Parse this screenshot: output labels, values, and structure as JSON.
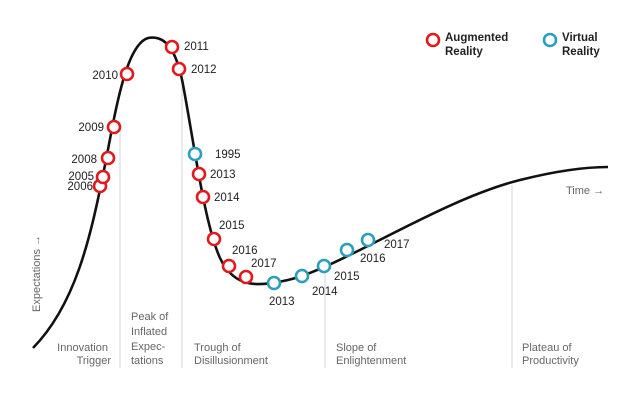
{
  "colors": {
    "curve": "#111111",
    "augmented": "#e0191d",
    "virtual": "#2a9fbd",
    "divider": "#d6d6d6",
    "phase_text": "#666666"
  },
  "legend": {
    "augmented_line1": "Augmented",
    "augmented_line2": "Reality",
    "virtual_line1": "Virtual",
    "virtual_line2": "Reality"
  },
  "axes": {
    "x_label": "Time →",
    "y_label": "Expectations →"
  },
  "phases": [
    {
      "lines": [
        "Innovation",
        "Trigger"
      ]
    },
    {
      "lines": [
        "Peak of",
        "Inflated",
        "Expec-",
        "tations"
      ]
    },
    {
      "lines": [
        "Trough of",
        "Disillusionment"
      ]
    },
    {
      "lines": [
        "Slope of",
        "Enlightenment"
      ]
    },
    {
      "lines": [
        "Plateau of",
        "Productivity"
      ]
    }
  ],
  "markers": [
    {
      "series": "augmented",
      "year": "2006"
    },
    {
      "series": "augmented",
      "year": "2005"
    },
    {
      "series": "augmented",
      "year": "2008"
    },
    {
      "series": "augmented",
      "year": "2009"
    },
    {
      "series": "augmented",
      "year": "2010"
    },
    {
      "series": "augmented",
      "year": "2011"
    },
    {
      "series": "augmented",
      "year": "2012"
    },
    {
      "series": "virtual",
      "year": "1995"
    },
    {
      "series": "augmented",
      "year": "2013"
    },
    {
      "series": "augmented",
      "year": "2014"
    },
    {
      "series": "augmented",
      "year": "2015"
    },
    {
      "series": "augmented",
      "year": "2016"
    },
    {
      "series": "augmented",
      "year": "2017"
    },
    {
      "series": "virtual",
      "year": "2013"
    },
    {
      "series": "virtual",
      "year": "2014"
    },
    {
      "series": "virtual",
      "year": "2015"
    },
    {
      "series": "virtual",
      "year": "2016"
    },
    {
      "series": "virtual",
      "year": "2017"
    }
  ]
}
